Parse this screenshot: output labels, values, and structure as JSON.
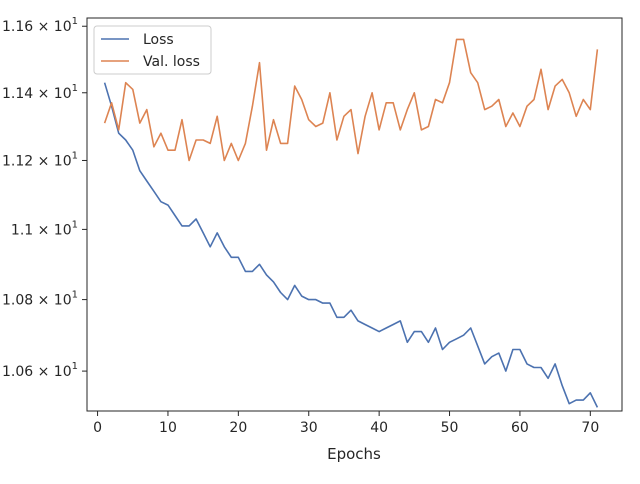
{
  "chart_data": {
    "type": "line",
    "xlabel": "Epochs",
    "ylabel": "",
    "title": "",
    "xlim": [
      -1.5,
      74.5
    ],
    "ylim": [
      10.49,
      11.625
    ],
    "log_y": true,
    "grid": false,
    "legend_position": "upper-left",
    "x_ticks": [
      0,
      10,
      20,
      30,
      40,
      50,
      60,
      70
    ],
    "x_tick_labels": [
      "0",
      "10",
      "20",
      "30",
      "40",
      "50",
      "60",
      "70"
    ],
    "y_ticks": [
      10.6,
      10.8,
      11.0,
      11.2,
      11.4,
      11.6
    ],
    "y_tick_labels": [
      {
        "mantissa": "1.06",
        "exponent": "1"
      },
      {
        "mantissa": "1.08",
        "exponent": "1"
      },
      {
        "mantissa": "1.1",
        "exponent": "1"
      },
      {
        "mantissa": "1.12",
        "exponent": "1"
      },
      {
        "mantissa": "1.14",
        "exponent": "1"
      },
      {
        "mantissa": "1.16",
        "exponent": "1"
      }
    ],
    "y_tick_label_times": "×",
    "y_tick_label_base": "10",
    "x": [
      1,
      2,
      3,
      4,
      5,
      6,
      7,
      8,
      9,
      10,
      11,
      12,
      13,
      14,
      15,
      16,
      17,
      18,
      19,
      20,
      21,
      22,
      23,
      24,
      25,
      26,
      27,
      28,
      29,
      30,
      31,
      32,
      33,
      34,
      35,
      36,
      37,
      38,
      39,
      40,
      41,
      42,
      43,
      44,
      45,
      46,
      47,
      48,
      49,
      50,
      51,
      52,
      53,
      54,
      55,
      56,
      57,
      58,
      59,
      60,
      61,
      62,
      63,
      64,
      65,
      66,
      67,
      68,
      69,
      70,
      71
    ],
    "series": [
      {
        "name": "Loss",
        "color": "#4c72b0",
        "values": [
          11.43,
          11.36,
          11.28,
          11.26,
          11.23,
          11.17,
          11.14,
          11.11,
          11.08,
          11.07,
          11.04,
          11.01,
          11.01,
          11.03,
          10.99,
          10.95,
          10.99,
          10.95,
          10.92,
          10.92,
          10.88,
          10.88,
          10.9,
          10.87,
          10.85,
          10.82,
          10.8,
          10.84,
          10.81,
          10.8,
          10.8,
          10.79,
          10.79,
          10.75,
          10.75,
          10.77,
          10.74,
          10.73,
          10.72,
          10.71,
          10.72,
          10.73,
          10.74,
          10.68,
          10.71,
          10.71,
          10.68,
          10.72,
          10.66,
          10.68,
          10.69,
          10.7,
          10.72,
          10.67,
          10.62,
          10.64,
          10.65,
          10.6,
          10.66,
          10.66,
          10.62,
          10.61,
          10.61,
          10.58,
          10.62,
          10.56,
          10.51,
          10.52,
          10.52,
          10.54,
          10.5
        ]
      },
      {
        "name": "Val. loss",
        "color": "#dd8452",
        "values": [
          11.31,
          11.37,
          11.29,
          11.43,
          11.41,
          11.31,
          11.35,
          11.24,
          11.28,
          11.23,
          11.23,
          11.32,
          11.2,
          11.26,
          11.26,
          11.25,
          11.33,
          11.2,
          11.25,
          11.2,
          11.25,
          11.36,
          11.49,
          11.23,
          11.32,
          11.25,
          11.25,
          11.42,
          11.38,
          11.32,
          11.3,
          11.31,
          11.4,
          11.26,
          11.33,
          11.35,
          11.22,
          11.33,
          11.4,
          11.29,
          11.37,
          11.37,
          11.29,
          11.35,
          11.4,
          11.29,
          11.3,
          11.38,
          11.37,
          11.43,
          11.56,
          11.56,
          11.46,
          11.43,
          11.35,
          11.36,
          11.38,
          11.3,
          11.34,
          11.3,
          11.36,
          11.38,
          11.47,
          11.35,
          11.42,
          11.44,
          11.4,
          11.33,
          11.38,
          11.35,
          11.53
        ]
      }
    ]
  }
}
